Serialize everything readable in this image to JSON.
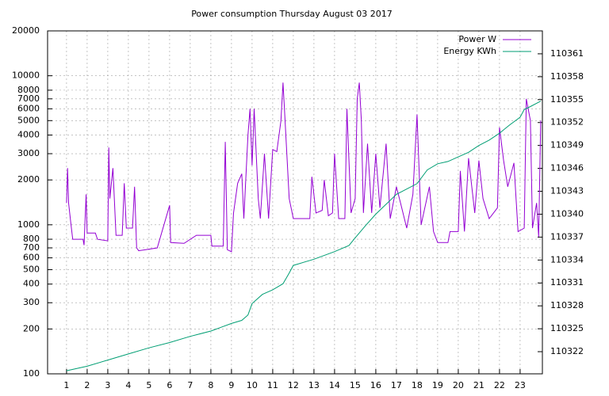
{
  "chart_data": {
    "type": "line",
    "title": "Power consumption Thursday August 03 2017",
    "xlim": [
      0.08,
      24.08
    ],
    "xticks": [
      1,
      2,
      3,
      4,
      5,
      6,
      7,
      8,
      9,
      10,
      11,
      12,
      13,
      14,
      15,
      16,
      17,
      18,
      19,
      20,
      21,
      22,
      23
    ],
    "ylim": [
      100,
      20000
    ],
    "y_log_scale": true,
    "yticks": [
      100,
      200,
      300,
      400,
      500,
      600,
      700,
      800,
      1000,
      2000,
      3000,
      4000,
      5000,
      6000,
      7000,
      8000,
      10000,
      20000
    ],
    "y2lim": [
      110319.1,
      110364.0
    ],
    "y2ticks": [
      110322,
      110325,
      110328,
      110331,
      110334,
      110337,
      110340,
      110343,
      110346,
      110349,
      110352,
      110355,
      110358,
      110361
    ],
    "grid": true,
    "legend": "top-right",
    "series": [
      {
        "name": "Power W",
        "color": "#9400d3",
        "axis": "y",
        "x": [
          1.0,
          1.05,
          1.1,
          1.2,
          1.3,
          1.8,
          1.85,
          1.95,
          2.0,
          2.4,
          2.5,
          3.0,
          3.05,
          3.1,
          3.25,
          3.4,
          3.7,
          3.8,
          3.9,
          4.2,
          4.3,
          4.4,
          4.5,
          5.4,
          6.0,
          6.05,
          6.7,
          7.3,
          8.0,
          8.05,
          8.6,
          8.7,
          8.8,
          9.0,
          9.1,
          9.3,
          9.5,
          9.6,
          9.8,
          9.9,
          10.0,
          10.1,
          10.3,
          10.4,
          10.6,
          10.8,
          11.0,
          11.2,
          11.4,
          11.5,
          11.6,
          11.8,
          12.0,
          12.8,
          12.9,
          13.1,
          13.4,
          13.5,
          13.7,
          13.9,
          14.0,
          14.2,
          14.5,
          14.6,
          14.8,
          15.0,
          15.1,
          15.2,
          15.3,
          15.4,
          15.6,
          15.8,
          16.0,
          16.2,
          16.5,
          16.7,
          17.0,
          17.2,
          17.5,
          17.8,
          18.0,
          18.2,
          18.6,
          18.8,
          19.0,
          19.5,
          19.6,
          20.0,
          20.1,
          20.3,
          20.5,
          20.8,
          21.0,
          21.2,
          21.5,
          21.9,
          22.0,
          22.2,
          22.4,
          22.7,
          22.9,
          23.2,
          23.3,
          23.5,
          23.6,
          23.8,
          23.9,
          24.0
        ],
        "values": [
          1400,
          2400,
          1400,
          1050,
          800,
          800,
          730,
          1600,
          880,
          880,
          800,
          780,
          3300,
          1500,
          2400,
          850,
          850,
          1900,
          950,
          950,
          1800,
          700,
          670,
          700,
          1350,
          760,
          750,
          850,
          850,
          720,
          720,
          3600,
          680,
          660,
          1200,
          1900,
          2200,
          1100,
          4000,
          6000,
          2500,
          6000,
          1500,
          1100,
          3000,
          1100,
          3200,
          3100,
          5000,
          9000,
          5000,
          1500,
          1100,
          1100,
          2100,
          1200,
          1250,
          2000,
          1150,
          1200,
          3000,
          1100,
          1100,
          6000,
          1200,
          1500,
          7000,
          9000,
          5000,
          1200,
          3500,
          1200,
          3000,
          1300,
          3500,
          1100,
          1800,
          1400,
          950,
          1600,
          5500,
          1000,
          1800,
          900,
          760,
          760,
          900,
          900,
          2300,
          900,
          2800,
          1200,
          2700,
          1500,
          1100,
          1300,
          4500,
          2700,
          1800,
          2600,
          900,
          950,
          7000,
          5000,
          950,
          1400,
          830,
          5000
        ]
      },
      {
        "name": "Energy KWh",
        "color": "#009e73",
        "axis": "y2",
        "x": [
          1,
          2,
          3,
          4,
          5,
          6,
          7,
          8,
          8.5,
          9,
          9.5,
          9.8,
          10,
          10.5,
          11,
          11.5,
          11.8,
          12,
          13,
          14,
          14.7,
          15,
          15.5,
          16,
          16.5,
          17,
          18,
          18.5,
          19,
          19.5,
          20,
          20.5,
          21,
          21.5,
          22,
          22.5,
          23,
          23.2,
          23.5,
          24
        ],
        "values": [
          110319.5,
          110320.1,
          110320.9,
          110321.7,
          110322.5,
          110323.2,
          110324.0,
          110324.7,
          110325.2,
          110325.7,
          110326.1,
          110326.8,
          110328.3,
          110329.5,
          110330.1,
          110330.9,
          110332.3,
          110333.3,
          110334.1,
          110335.1,
          110335.9,
          110336.9,
          110338.5,
          110340.0,
          110341.3,
          110342.6,
          110344.0,
          110345.8,
          110346.6,
          110346.9,
          110347.5,
          110348.1,
          110349.0,
          110349.7,
          110350.6,
          110351.7,
          110352.7,
          110353.7,
          110354.1,
          110354.8
        ]
      }
    ]
  }
}
